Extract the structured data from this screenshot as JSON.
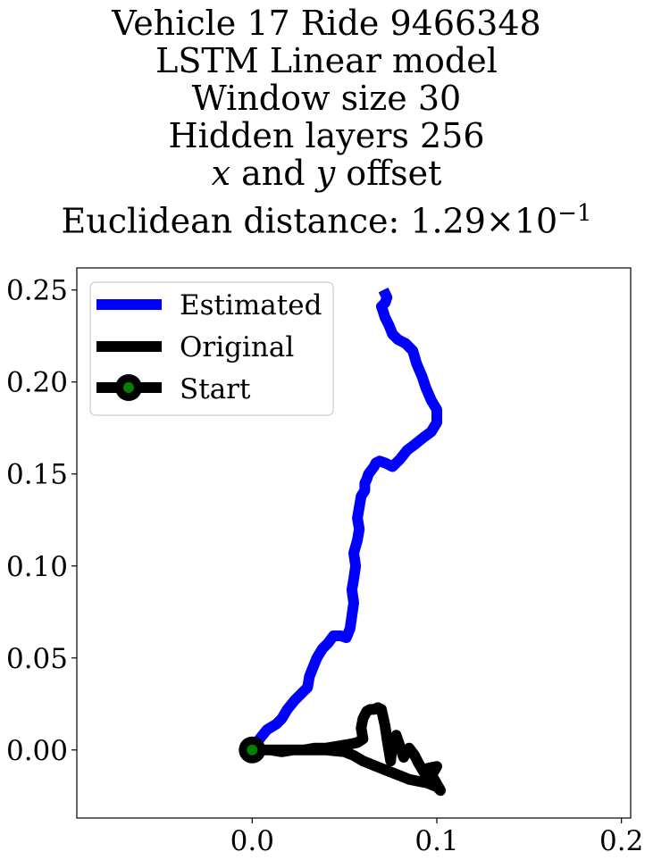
{
  "title_lines": [
    "Vehicle 17 Ride 9466348",
    "LSTM Linear model",
    "Window size 30",
    "Hidden layers 256",
    "x and y offset",
    "Euclidean distance: 1.29×10−1"
  ],
  "title_parts": {
    "line5_x": "x",
    "line5_mid": " and ",
    "line5_y": "y",
    "line5_end": " offset",
    "line6_prefix": "Euclidean distance: 1.29",
    "line6_times": "×",
    "line6_base": "10",
    "line6_exp": "−1"
  },
  "colors": {
    "estimated": "#0000ff",
    "original": "#000000",
    "start_marker": "#008000"
  },
  "chart_data": {
    "type": "line",
    "xlim": [
      -0.095,
      0.205
    ],
    "ylim": [
      -0.037,
      0.262
    ],
    "xticks": [
      0.0,
      0.1,
      0.2
    ],
    "xtick_labels": [
      "0.0",
      "0.1",
      "0.2"
    ],
    "yticks": [
      0.0,
      0.05,
      0.1,
      0.15,
      0.2,
      0.25
    ],
    "ytick_labels": [
      "0.00",
      "0.05",
      "0.10",
      "0.15",
      "0.20",
      "0.25"
    ],
    "legend_position": "upper-left",
    "series": [
      {
        "name": "Estimated",
        "x": [
          0.0,
          0.004,
          0.008,
          0.013,
          0.016,
          0.019,
          0.023,
          0.027,
          0.03,
          0.031,
          0.033,
          0.035,
          0.038,
          0.041,
          0.044,
          0.048,
          0.051,
          0.053,
          0.054,
          0.055,
          0.054,
          0.055,
          0.056,
          0.055,
          0.057,
          0.058,
          0.057,
          0.058,
          0.059,
          0.061,
          0.061,
          0.062,
          0.063,
          0.066,
          0.067,
          0.069,
          0.072,
          0.076,
          0.08,
          0.084,
          0.088,
          0.093,
          0.097,
          0.1,
          0.1,
          0.097,
          0.094,
          0.092,
          0.089,
          0.087,
          0.083,
          0.079,
          0.076,
          0.074,
          0.072,
          0.071,
          0.07,
          0.072,
          0.073,
          0.071
        ],
        "y": [
          0.0,
          0.006,
          0.011,
          0.014,
          0.017,
          0.022,
          0.027,
          0.031,
          0.034,
          0.04,
          0.045,
          0.05,
          0.055,
          0.058,
          0.062,
          0.062,
          0.061,
          0.066,
          0.073,
          0.08,
          0.087,
          0.093,
          0.1,
          0.107,
          0.114,
          0.12,
          0.126,
          0.132,
          0.138,
          0.141,
          0.145,
          0.147,
          0.15,
          0.154,
          0.156,
          0.157,
          0.156,
          0.154,
          0.158,
          0.163,
          0.166,
          0.17,
          0.173,
          0.178,
          0.185,
          0.19,
          0.197,
          0.203,
          0.21,
          0.217,
          0.221,
          0.223,
          0.226,
          0.231,
          0.235,
          0.238,
          0.241,
          0.243,
          0.246,
          0.25
        ]
      },
      {
        "name": "Original",
        "x": [
          0.0,
          0.01,
          0.02,
          0.03,
          0.04,
          0.05,
          0.055,
          0.06,
          0.065,
          0.07,
          0.075,
          0.08,
          0.085,
          0.09,
          0.095,
          0.1,
          0.102,
          0.098,
          0.095,
          0.1,
          0.097,
          0.093,
          0.09,
          0.088,
          0.085,
          0.082,
          0.08,
          0.078,
          0.076,
          0.075,
          0.073,
          0.072,
          0.07,
          0.068,
          0.066,
          0.064,
          0.062,
          0.06,
          0.059,
          0.06,
          0.057,
          0.052,
          0.046,
          0.04,
          0.034,
          0.028,
          0.022,
          0.016,
          0.01,
          0.005,
          0.0
        ],
        "y": [
          0.0,
          0.0,
          0.0,
          0.0,
          0.0,
          -0.001,
          -0.003,
          -0.006,
          -0.008,
          -0.01,
          -0.012,
          -0.014,
          -0.016,
          -0.017,
          -0.018,
          -0.02,
          -0.022,
          -0.015,
          -0.01,
          -0.009,
          -0.014,
          -0.012,
          -0.007,
          -0.003,
          0.001,
          -0.004,
          0.002,
          0.008,
          0.004,
          -0.006,
          0.006,
          0.013,
          0.022,
          0.023,
          0.022,
          0.022,
          0.021,
          0.017,
          0.012,
          0.006,
          0.004,
          0.003,
          0.002,
          0.001,
          0.001,
          0.0,
          0.0,
          -0.001,
          0.0,
          0.0,
          0.0
        ]
      }
    ],
    "start": {
      "name": "Start",
      "x": 0.0,
      "y": 0.0
    }
  }
}
